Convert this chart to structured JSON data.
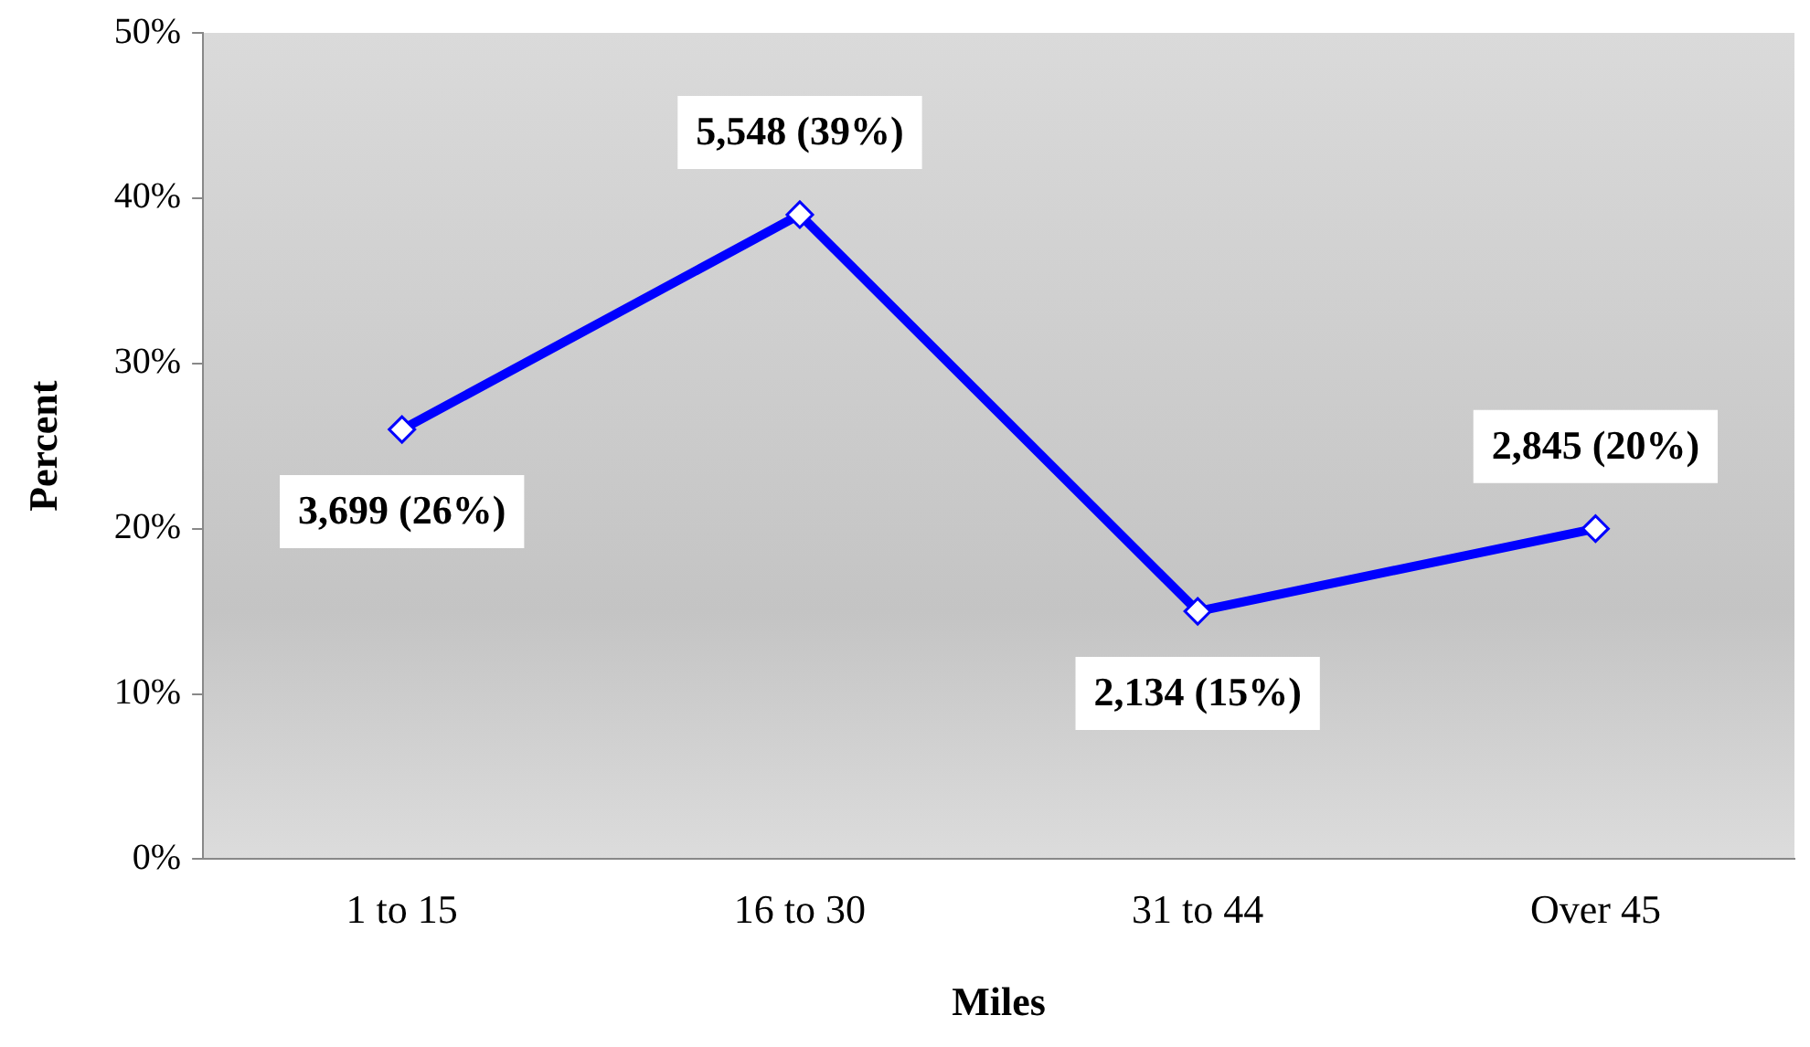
{
  "chart_data": {
    "type": "line",
    "xlabel": "Miles",
    "ylabel": "Percent",
    "categories": [
      "1 to 15",
      "16 to 30",
      "31 to 44",
      "Over 45"
    ],
    "series": [
      {
        "color": "#0000ff",
        "values": [
          26,
          39,
          15,
          20
        ],
        "value_labels": [
          "3,699 (26%)",
          "5,548 (39%)",
          "2,134 (15%)",
          "2,845 (20%)"
        ]
      }
    ],
    "ylim": [
      0,
      50
    ],
    "yticks": [
      {
        "value": 0,
        "label": "0%"
      },
      {
        "value": 10,
        "label": "10%"
      },
      {
        "value": 20,
        "label": "20%"
      },
      {
        "value": 30,
        "label": "30%"
      },
      {
        "value": 40,
        "label": "40%"
      },
      {
        "value": 50,
        "label": "50%"
      }
    ],
    "grid": false,
    "legend": false,
    "marker": "diamond",
    "line_style": "solid"
  }
}
